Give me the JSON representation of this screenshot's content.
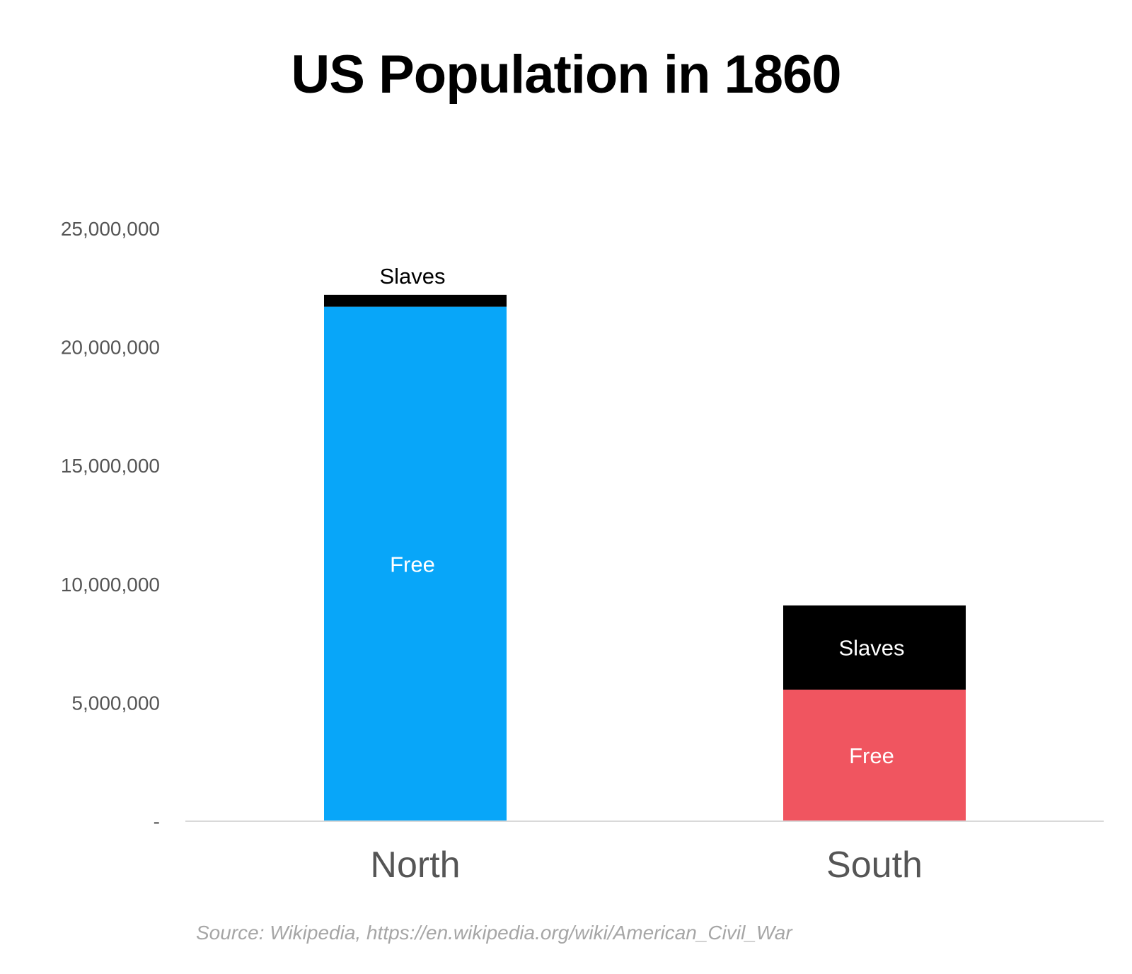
{
  "chart_data": {
    "type": "bar",
    "stacked": true,
    "title": "US Population in 1860",
    "categories": [
      "North",
      "South"
    ],
    "series": [
      {
        "name": "Free",
        "values": [
          21700000,
          5550000
        ],
        "color": "#08a6f9",
        "label_color": "#ffffff"
      },
      {
        "name": "Slaves",
        "values": [
          500000,
          3550000
        ],
        "color": "#000000",
        "label_color": "#ffffff"
      }
    ],
    "ylim": [
      0,
      25000000
    ],
    "yticks": [
      0,
      5000000,
      10000000,
      15000000,
      20000000,
      25000000
    ],
    "ytick_labels": [
      "-",
      "5,000,000",
      "10,000,000",
      "15,000,000",
      "20,000,000",
      "25,000,000"
    ],
    "category_colors": {
      "South": {
        "Free": "#f05560"
      }
    },
    "grid": false,
    "legend": "none",
    "source": "Source: Wikipedia, https://en.wikipedia.org/wiki/American_Civil_War"
  }
}
